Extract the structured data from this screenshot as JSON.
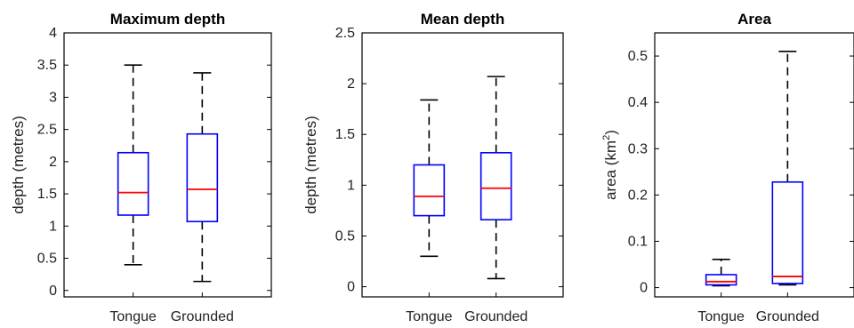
{
  "colors": {
    "box": "#0000ff",
    "median": "#ff0000",
    "whisker": "#000000",
    "frame": "#000000"
  },
  "chart_data": [
    {
      "type": "boxplot",
      "title": "Maximum depth",
      "ylabel": "depth (metres)",
      "categories": [
        "Tongue",
        "Grounded"
      ],
      "ylim": [
        -0.1,
        4
      ],
      "yticks": [
        0,
        0.5,
        1,
        1.5,
        2,
        2.5,
        3,
        3.5,
        4
      ],
      "ytick_labels": [
        "0",
        "0.5",
        "1",
        "1.5",
        "2",
        "2.5",
        "3",
        "3.5",
        "4"
      ],
      "boxes": [
        {
          "whisker_low": 0.4,
          "q1": 1.17,
          "median": 1.52,
          "q3": 2.14,
          "whisker_high": 3.5
        },
        {
          "whisker_low": 0.14,
          "q1": 1.07,
          "median": 1.57,
          "q3": 2.43,
          "whisker_high": 3.38
        }
      ]
    },
    {
      "type": "boxplot",
      "title": "Mean depth",
      "ylabel": "depth (metres)",
      "categories": [
        "Tongue",
        "Grounded"
      ],
      "ylim": [
        -0.1,
        2.5
      ],
      "yticks": [
        0,
        0.5,
        1,
        1.5,
        2,
        2.5
      ],
      "ytick_labels": [
        "0",
        "0.5",
        "1",
        "1.5",
        "2",
        "2.5"
      ],
      "boxes": [
        {
          "whisker_low": 0.3,
          "q1": 0.7,
          "median": 0.89,
          "q3": 1.2,
          "whisker_high": 1.84
        },
        {
          "whisker_low": 0.08,
          "q1": 0.66,
          "median": 0.97,
          "q3": 1.32,
          "whisker_high": 2.07
        }
      ]
    },
    {
      "type": "boxplot",
      "title": "Area",
      "ylabel": "area (km",
      "ylabel_sup": "2",
      "ylabel_end": ")",
      "categories": [
        "Tongue",
        "Grounded"
      ],
      "ylim": [
        -0.02,
        0.55
      ],
      "yticks": [
        0,
        0.1,
        0.2,
        0.3,
        0.4,
        0.5
      ],
      "ytick_labels": [
        "0",
        "0.1",
        "0.2",
        "0.3",
        "0.4",
        "0.5"
      ],
      "boxes": [
        {
          "whisker_low": 0.004,
          "q1": 0.006,
          "median": 0.013,
          "q3": 0.028,
          "whisker_high": 0.061
        },
        {
          "whisker_low": 0.006,
          "q1": 0.009,
          "median": 0.024,
          "q3": 0.228,
          "whisker_high": 0.51
        }
      ]
    }
  ]
}
